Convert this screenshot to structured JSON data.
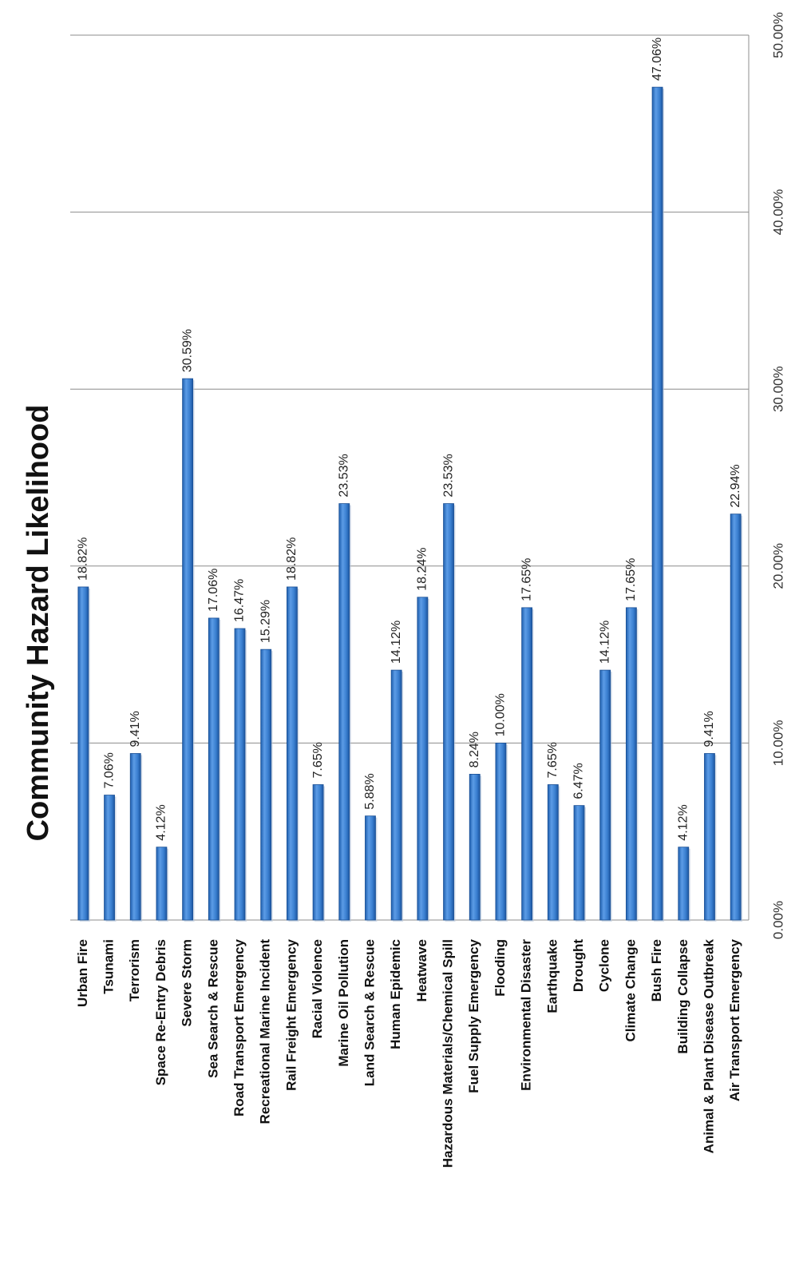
{
  "chart_data": {
    "type": "bar",
    "title": "Community Hazard Likelihood",
    "xlabel": "",
    "ylabel": "",
    "ylim": [
      0,
      50
    ],
    "y_ticks": [
      "0.00%",
      "10.00%",
      "20.00%",
      "30.00%",
      "40.00%",
      "50.00%"
    ],
    "grid": true,
    "orientation": "rotated-page",
    "bar_color": "#3a7fd0",
    "categories": [
      "Urban Fire",
      "Tsunami",
      "Terrorism",
      "Space Re-Entry Debris",
      "Severe Storm",
      "Sea Search & Rescue",
      "Road Transport Emergency",
      "Recreational Marine Incident",
      "Rail Freight Emergency",
      "Racial Violence",
      "Marine Oil Pollution",
      "Land Search & Rescue",
      "Human Epidemic",
      "Heatwave",
      "Hazardous Materials/Chemical Spill",
      "Fuel Supply Emergency",
      "Flooding",
      "Environmental Disaster",
      "Earthquake",
      "Drought",
      "Cyclone",
      "Climate Change",
      "Bush Fire",
      "Building Collapse",
      "Animal & Plant Disease Outbreak",
      "Air Transport Emergency"
    ],
    "values": [
      18.82,
      7.06,
      9.41,
      4.12,
      30.59,
      17.06,
      16.47,
      15.29,
      18.82,
      7.65,
      23.53,
      5.88,
      14.12,
      18.24,
      23.53,
      8.24,
      10.0,
      17.65,
      7.65,
      6.47,
      14.12,
      17.65,
      47.06,
      4.12,
      9.41,
      22.94
    ],
    "data_labels": [
      "18.82%",
      "7.06%",
      "9.41%",
      "4.12%",
      "30.59%",
      "17.06%",
      "16.47%",
      "15.29%",
      "18.82%",
      "7.65%",
      "23.53%",
      "5.88%",
      "14.12%",
      "18.24%",
      "23.53%",
      "8.24%",
      "10.00%",
      "17.65%",
      "7.65%",
      "6.47%",
      "14.12%",
      "17.65%",
      "47.06%",
      "4.12%",
      "9.41%",
      "22.94%"
    ]
  }
}
